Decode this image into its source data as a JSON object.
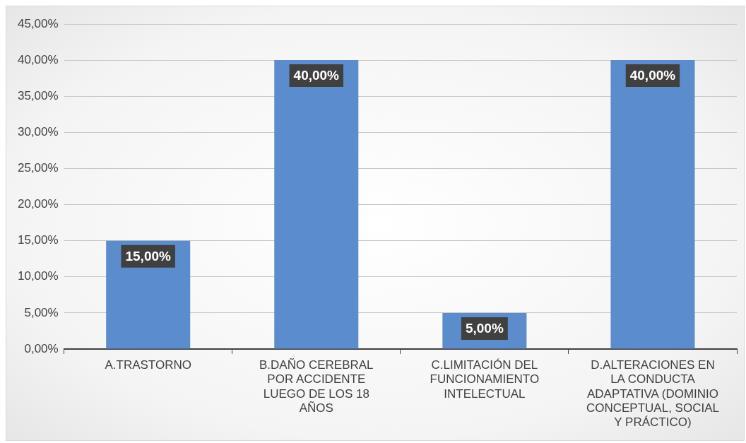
{
  "chart_data": {
    "type": "bar",
    "categories": [
      "A.TRASTORNO",
      "B.DAÑO CEREBRAL POR ACCIDENTE LUEGO DE LOS 18 AÑOS",
      "C.LIMITACIÓN DEL FUNCIONAMIENTO INTELECTUAL",
      "D.ALTERACIONES EN LA CONDUCTA ADAPTATIVA (DOMINIO CONCEPTUAL, SOCIAL Y PRÁCTICO)"
    ],
    "values": [
      15,
      40,
      5,
      40
    ],
    "value_labels": [
      "15,00%",
      "40,00%",
      "5,00%",
      "40,00%"
    ],
    "color": "#5b8ccc",
    "ylim": [
      0,
      45
    ],
    "yticks": [
      {
        "value": 0,
        "label": "0,00%"
      },
      {
        "value": 5,
        "label": "5,00%"
      },
      {
        "value": 10,
        "label": "10,00%"
      },
      {
        "value": 15,
        "label": "15,00%"
      },
      {
        "value": 20,
        "label": "20,00%"
      },
      {
        "value": 25,
        "label": "25,00%"
      },
      {
        "value": 30,
        "label": "30,00%"
      },
      {
        "value": 35,
        "label": "35,00%"
      },
      {
        "value": 40,
        "label": "40,00%"
      },
      {
        "value": 45,
        "label": "45,00%"
      }
    ],
    "grid": "y",
    "legend": false
  }
}
